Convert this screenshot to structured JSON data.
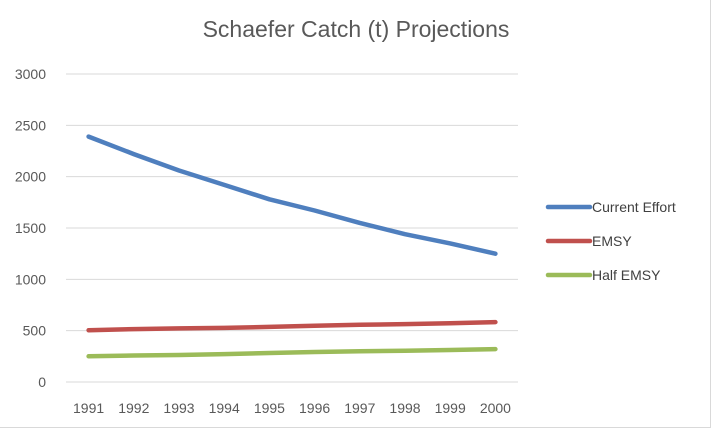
{
  "chart_data": {
    "type": "line",
    "title": "Schaefer Catch (t) Projections",
    "xlabel": "",
    "ylabel": "",
    "categories": [
      "1991",
      "1992",
      "1993",
      "1994",
      "1995",
      "1996",
      "1997",
      "1998",
      "1999",
      "2000"
    ],
    "ylim": [
      0,
      3000
    ],
    "yticks": [
      0,
      500,
      1000,
      1500,
      2000,
      2500,
      3000
    ],
    "grid": "horizontal",
    "legend": "right",
    "series": [
      {
        "name": "Current Effort",
        "color": "#4f7fbe",
        "values": [
          2390,
          2220,
          2060,
          1920,
          1780,
          1670,
          1550,
          1440,
          1350,
          1250
        ]
      },
      {
        "name": "EMSY",
        "color": "#c0504d",
        "values": [
          505,
          515,
          522,
          527,
          537,
          547,
          557,
          564,
          573,
          583
        ]
      },
      {
        "name": "Half EMSY",
        "color": "#9bbb59",
        "values": [
          250,
          258,
          263,
          272,
          282,
          292,
          300,
          305,
          312,
          320
        ]
      }
    ]
  }
}
